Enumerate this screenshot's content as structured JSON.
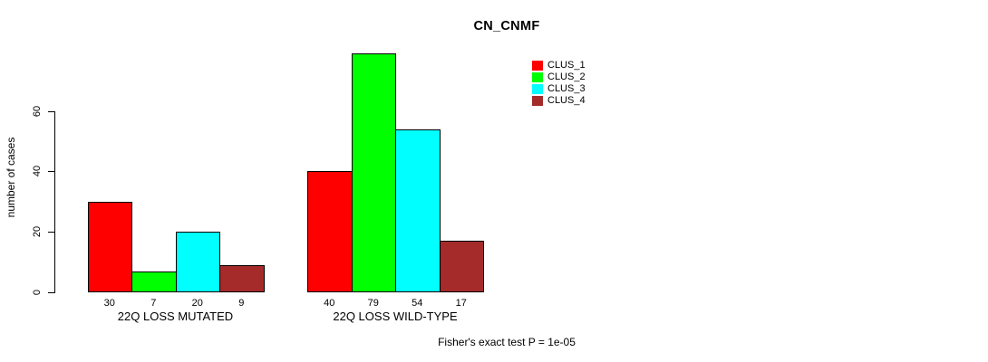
{
  "chart_data": {
    "type": "bar",
    "title": "CN_CNMF",
    "ylabel": "number of cases",
    "xlabel": "",
    "categories": [
      "22Q LOSS MUTATED",
      "22Q LOSS WILD-TYPE"
    ],
    "series": [
      {
        "name": "CLUS_1",
        "color": "#FF0000",
        "values": [
          30,
          40
        ]
      },
      {
        "name": "CLUS_2",
        "color": "#00FF00",
        "values": [
          7,
          79
        ]
      },
      {
        "name": "CLUS_3",
        "color": "#00FFFF",
        "values": [
          20,
          54
        ]
      },
      {
        "name": "CLUS_4",
        "color": "#A52A2A",
        "values": [
          9,
          17
        ]
      }
    ],
    "yticks": [
      0,
      20,
      40,
      60
    ],
    "ylim": [
      0,
      79
    ],
    "grid": false,
    "bar_value_labels": true,
    "legend_position": "top-right",
    "annotation": "Fisher's exact test P = 1e-05",
    "axis_color": "#000000",
    "bar_border_color": "#000000",
    "background_color": "#FFFFFF"
  }
}
